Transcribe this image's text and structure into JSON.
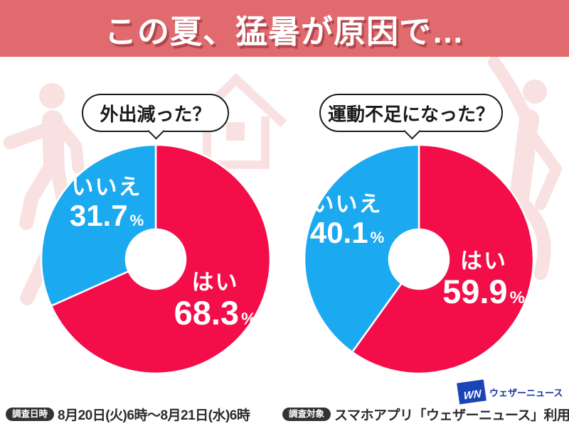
{
  "header": {
    "title": "この夏、猛暑が原因で…",
    "bg_color": "#E06A6E"
  },
  "charts": [
    {
      "question": "外出減った？",
      "slices": [
        {
          "label": "はい",
          "value": "68.3",
          "unit": "%",
          "color": "#F30D49"
        },
        {
          "label": "いいえ",
          "value": "31.7",
          "unit": "%",
          "color": "#1BA9F0"
        }
      ]
    },
    {
      "question": "運動不足になった？",
      "slices": [
        {
          "label": "はい",
          "value": "59.9",
          "unit": "%",
          "color": "#F30D49"
        },
        {
          "label": "いいえ",
          "value": "40.1",
          "unit": "%",
          "color": "#1BA9F0"
        }
      ]
    }
  ],
  "chart_data": [
    {
      "type": "pie",
      "title": "外出減った？",
      "labels": [
        "はい",
        "いいえ"
      ],
      "values": [
        68.3,
        31.7
      ],
      "colors": [
        "#F30D49",
        "#1BA9F0"
      ],
      "donut": true,
      "donut_hole_ratio": 0.26,
      "start_angle_deg": 0,
      "direction": "clockwise",
      "legend_position": "none",
      "data_labels": [
        "はい 68.3%",
        "いいえ 31.7%"
      ]
    },
    {
      "type": "pie",
      "title": "運動不足になった？",
      "labels": [
        "はい",
        "いいえ"
      ],
      "values": [
        59.9,
        40.1
      ],
      "colors": [
        "#F30D49",
        "#1BA9F0"
      ],
      "donut": true,
      "donut_hole_ratio": 0.26,
      "start_angle_deg": 0,
      "direction": "clockwise",
      "legend_position": "none",
      "data_labels": [
        "はい 59.9%",
        "いいえ 40.1%"
      ]
    }
  ],
  "footer": {
    "date_badge": "調査日時",
    "date_text": "8月20日(火)6時～8月21日(水)6時",
    "target_badge": "調査対象",
    "target_text": "スマホアプリ「ウェザーニュース」利用者"
  },
  "logo": {
    "mark": "WN",
    "name": "ウェザーニュース"
  },
  "decor_color": "#F9E1E2"
}
